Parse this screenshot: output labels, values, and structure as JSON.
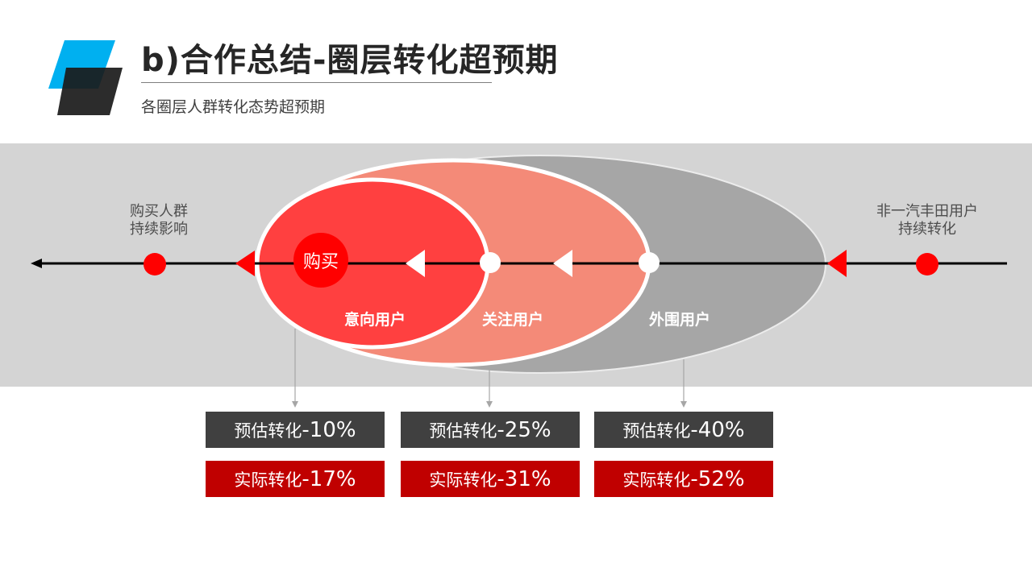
{
  "header": {
    "title": "b)合作总结-圈层转化超预期",
    "subtitle": "各圈层人群转化态势超预期"
  },
  "diagram": {
    "left_label": [
      "购买人群",
      "持续影响"
    ],
    "right_label": [
      "非一汽丰田用户",
      "持续转化"
    ],
    "purchase_label": "购买",
    "layers": [
      {
        "key": "intent",
        "label": "意向用户",
        "color": "#ff4040"
      },
      {
        "key": "follow",
        "label": "关注用户",
        "color": "#f48a78"
      },
      {
        "key": "outer",
        "label": "外围用户",
        "color": "#a6a6a6"
      }
    ],
    "colors": {
      "accent_red": "#ff0000",
      "dark_red": "#c00000",
      "gray_box": "#404040",
      "band": "#d4d4d4"
    }
  },
  "conversions": [
    {
      "est_prefix": "预估转化",
      "est_value": "-10%",
      "act_prefix": "实际转化",
      "act_value": "-17%"
    },
    {
      "est_prefix": "预估转化",
      "est_value": "-25%",
      "act_prefix": "实际转化",
      "act_value": "-31%"
    },
    {
      "est_prefix": "预估转化",
      "est_value": "-40%",
      "act_prefix": "实际转化",
      "act_value": "-52%"
    }
  ]
}
